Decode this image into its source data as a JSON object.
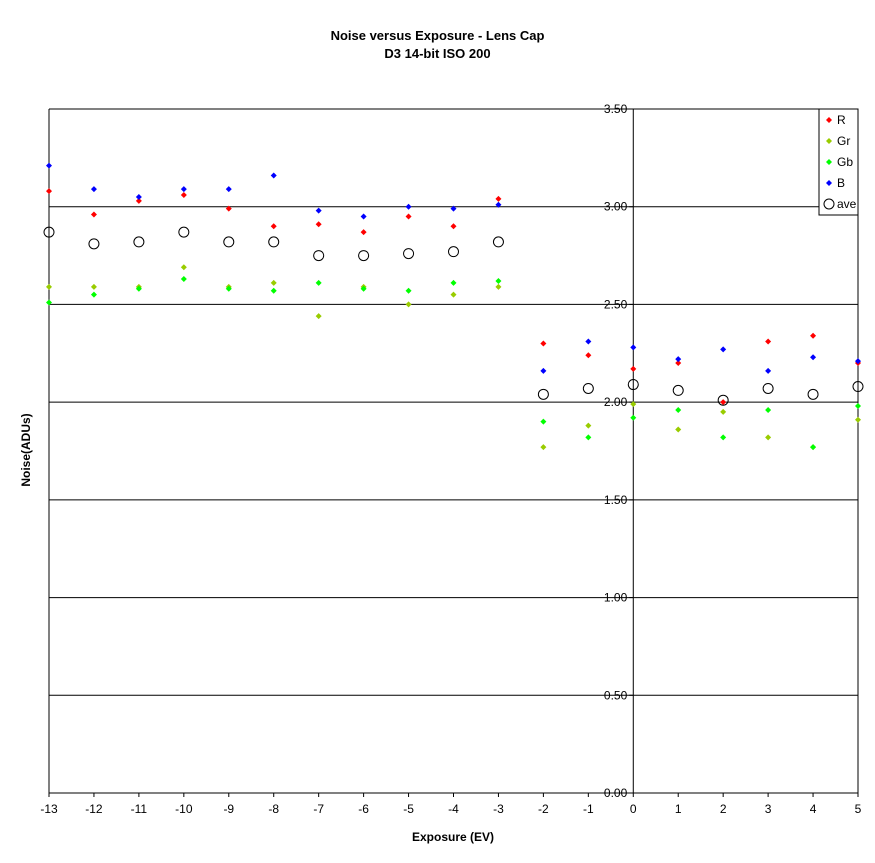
{
  "chart_data": {
    "type": "scatter",
    "title": "Noise versus Exposure - Lens Cap",
    "subtitle": "D3 14-bit ISO 200",
    "xlabel": "Exposure (EV)",
    "ylabel": "Noise(ADUs)",
    "xlim": [
      -13,
      5
    ],
    "ylim": [
      0,
      3.5
    ],
    "x_ticks": [
      -13,
      -12,
      -11,
      -10,
      -9,
      -8,
      -7,
      -6,
      -5,
      -4,
      -3,
      -2,
      -1,
      0,
      1,
      2,
      3,
      4,
      5
    ],
    "y_ticks": [
      "0.00",
      "0.50",
      "1.00",
      "1.50",
      "2.00",
      "2.50",
      "3.00",
      "3.50"
    ],
    "grid": "horizontal",
    "legend_position": "top-right",
    "x": [
      -13,
      -12,
      -11,
      -10,
      -9,
      -8,
      -7,
      -6,
      -5,
      -4,
      -3,
      -2,
      -1,
      0,
      1,
      2,
      3,
      4,
      5
    ],
    "series": [
      {
        "name": "R",
        "color": "#ff0000",
        "marker": "diamond",
        "values": [
          3.08,
          2.96,
          3.03,
          3.06,
          2.99,
          2.9,
          2.91,
          2.87,
          2.95,
          2.9,
          3.04,
          2.3,
          2.24,
          2.17,
          2.2,
          2.0,
          2.31,
          2.34,
          2.2
        ]
      },
      {
        "name": "Gr",
        "color": "#99cc00",
        "marker": "diamond",
        "values": [
          2.59,
          2.59,
          2.59,
          2.69,
          2.59,
          2.61,
          2.44,
          2.59,
          2.5,
          2.55,
          2.59,
          1.77,
          1.88,
          1.99,
          1.86,
          1.95,
          1.82,
          1.77,
          1.91
        ]
      },
      {
        "name": "Gb",
        "color": "#00ff00",
        "marker": "diamond",
        "values": [
          2.51,
          2.55,
          2.58,
          2.63,
          2.58,
          2.57,
          2.61,
          2.58,
          2.57,
          2.61,
          2.62,
          1.9,
          1.82,
          1.92,
          1.96,
          1.82,
          1.96,
          1.77,
          1.98
        ]
      },
      {
        "name": "B",
        "color": "#0000ff",
        "marker": "diamond",
        "values": [
          3.21,
          3.09,
          3.05,
          3.09,
          3.09,
          3.16,
          2.98,
          2.95,
          3.0,
          2.99,
          3.01,
          2.16,
          2.31,
          2.28,
          2.22,
          2.27,
          2.16,
          2.23,
          2.21
        ]
      },
      {
        "name": "ave",
        "color": "#000000",
        "marker": "circle",
        "values": [
          2.87,
          2.81,
          2.82,
          2.87,
          2.82,
          2.82,
          2.75,
          2.75,
          2.76,
          2.77,
          2.82,
          2.04,
          2.07,
          2.09,
          2.06,
          2.01,
          2.07,
          2.04,
          2.08
        ]
      }
    ]
  }
}
